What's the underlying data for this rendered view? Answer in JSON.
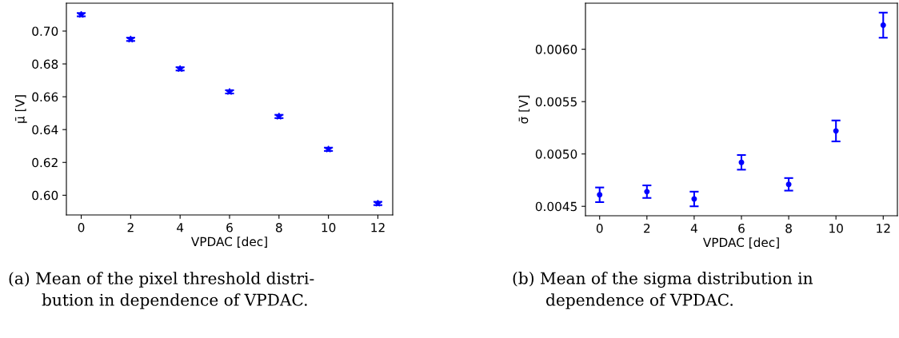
{
  "chart_data": [
    {
      "type": "scatter",
      "xlabel": "VPDAC [dec]",
      "ylabel": "μ̄ [V]",
      "x": [
        0,
        2,
        4,
        6,
        8,
        10,
        12
      ],
      "series": [
        {
          "color": "#0000ff",
          "values": [
            0.71,
            0.695,
            0.677,
            0.663,
            0.648,
            0.628,
            0.595
          ],
          "errors": [
            0.001,
            0.001,
            0.001,
            0.001,
            0.001,
            0.001,
            0.001
          ]
        }
      ],
      "marker": "star",
      "line_style": "none",
      "grid": false,
      "xlim": [
        -0.6,
        12.6
      ],
      "xticks": [
        0,
        2,
        4,
        6,
        8,
        10,
        12
      ],
      "ylim": [
        0.588,
        0.717
      ],
      "yticks": [
        {
          "value": 0.6,
          "label": "0.60"
        },
        {
          "value": 0.62,
          "label": "0.62"
        },
        {
          "value": 0.64,
          "label": "0.64"
        },
        {
          "value": 0.66,
          "label": "0.66"
        },
        {
          "value": 0.68,
          "label": "0.68"
        },
        {
          "value": 0.7,
          "label": "0.70"
        }
      ],
      "annotations": [
        "(a) Mean of the pixel threshold distri-",
        "bution in dependence of VPDAC."
      ]
    },
    {
      "type": "scatter",
      "xlabel": "VPDAC [dec]",
      "ylabel": "σ̄ [V]",
      "x": [
        0,
        2,
        4,
        6,
        8,
        10,
        12
      ],
      "series": [
        {
          "color": "#0000ff",
          "values": [
            0.00461,
            0.00464,
            0.00457,
            0.00492,
            0.00471,
            0.00522,
            0.00623
          ],
          "errors": [
            7e-05,
            6e-05,
            7e-05,
            7e-05,
            6e-05,
            0.0001,
            0.00012
          ]
        }
      ],
      "marker": "circle",
      "line_style": "none",
      "grid": false,
      "xlim": [
        -0.6,
        12.6
      ],
      "xticks": [
        0,
        2,
        4,
        6,
        8,
        10,
        12
      ],
      "ylim": [
        0.00441,
        0.00644
      ],
      "yticks": [
        {
          "value": 0.0045,
          "label": "0.0045"
        },
        {
          "value": 0.005,
          "label": "0.0050"
        },
        {
          "value": 0.0055,
          "label": "0.0055"
        },
        {
          "value": 0.006,
          "label": "0.0060"
        }
      ],
      "annotations": [
        "(b) Mean of the sigma distribution in",
        "dependence of VPDAC."
      ]
    }
  ]
}
